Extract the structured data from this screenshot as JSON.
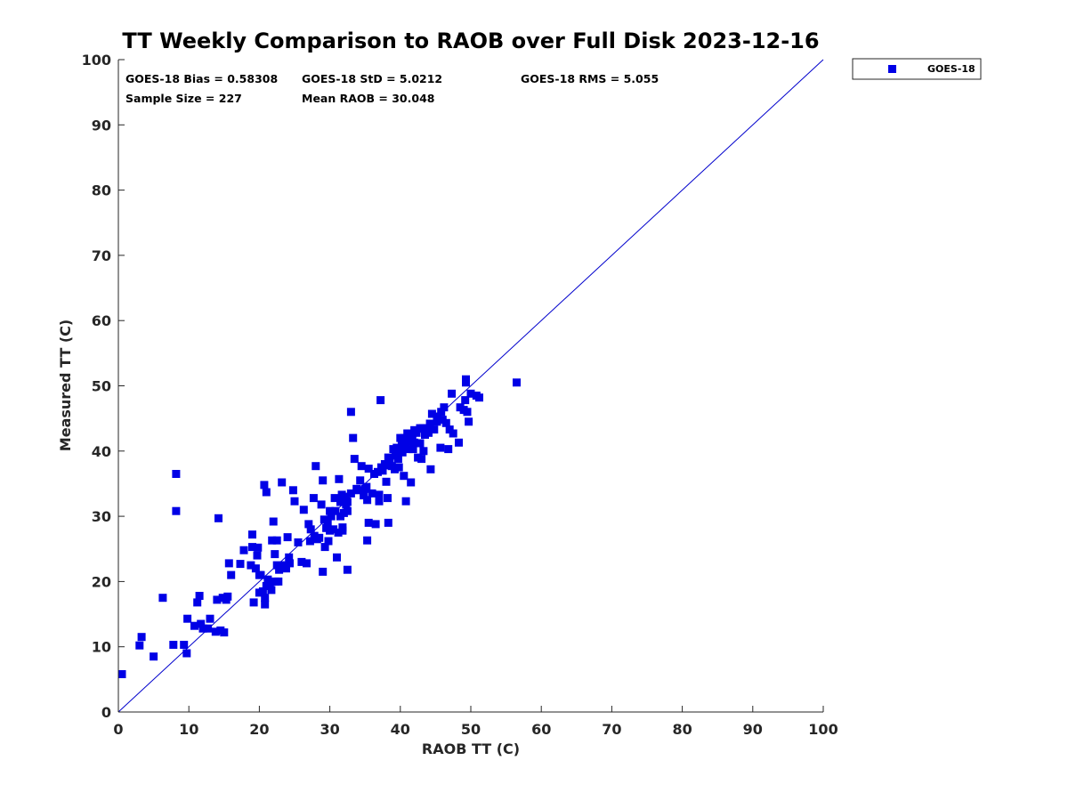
{
  "chart_data": {
    "type": "scatter",
    "title": "TT Weekly Comparison to RAOB over Full Disk 2023-12-16",
    "xlabel": "RAOB TT (C)",
    "ylabel": "Measured TT (C)",
    "xlim": [
      0,
      100
    ],
    "ylim": [
      0,
      100
    ],
    "xticks": [
      "0",
      "10",
      "20",
      "30",
      "40",
      "50",
      "60",
      "70",
      "80",
      "90",
      "100"
    ],
    "yticks": [
      "0",
      "10",
      "20",
      "30",
      "40",
      "50",
      "60",
      "70",
      "80",
      "90",
      "100"
    ],
    "grid": false,
    "legend_position": "outside-top-right",
    "reference_line": {
      "name": "1:1 line",
      "x": [
        0,
        100
      ],
      "y": [
        0,
        100
      ],
      "color": "#0000cc"
    },
    "stats": {
      "bias": "GOES-18 Bias = 0.58308",
      "std": "GOES-18 StD = 5.0212",
      "rms": "GOES-18 RMS = 5.055",
      "sample_size": "Sample Size = 227",
      "mean_raob": "Mean RAOB = 30.048"
    },
    "series": [
      {
        "name": "GOES-18",
        "color": "#0000e6",
        "marker": "square",
        "points": [
          [
            0.5,
            5.8
          ],
          [
            3,
            10.2
          ],
          [
            3.3,
            11.5
          ],
          [
            5,
            8.5
          ],
          [
            6.3,
            17.5
          ],
          [
            7.8,
            10.3
          ],
          [
            8.2,
            36.5
          ],
          [
            8.2,
            30.8
          ],
          [
            9.3,
            10.3
          ],
          [
            9.7,
            9
          ],
          [
            9.8,
            14.3
          ],
          [
            10.8,
            13.2
          ],
          [
            11.2,
            16.8
          ],
          [
            11.5,
            17.8
          ],
          [
            11.7,
            13.5
          ],
          [
            12,
            12.8
          ],
          [
            12.7,
            12.8
          ],
          [
            13,
            14.3
          ],
          [
            13.8,
            12.3
          ],
          [
            14,
            17.2
          ],
          [
            14.2,
            29.7
          ],
          [
            14.5,
            12.5
          ],
          [
            14.8,
            17.5
          ],
          [
            15,
            12.2
          ],
          [
            15.3,
            17.2
          ],
          [
            15.5,
            17.7
          ],
          [
            15.7,
            22.8
          ],
          [
            16,
            21
          ],
          [
            17.3,
            22.7
          ],
          [
            17.8,
            24.8
          ],
          [
            18.8,
            22.5
          ],
          [
            19,
            25.3
          ],
          [
            19,
            27.2
          ],
          [
            19.2,
            16.8
          ],
          [
            19.5,
            22
          ],
          [
            19.7,
            24
          ],
          [
            19.8,
            25.2
          ],
          [
            20,
            18.3
          ],
          [
            20,
            21
          ],
          [
            20.2,
            21
          ],
          [
            20.5,
            18.5
          ],
          [
            20.7,
            34.8
          ],
          [
            20.8,
            16.5
          ],
          [
            20.8,
            17.5
          ],
          [
            21,
            33.7
          ],
          [
            21,
            19.3
          ],
          [
            21.2,
            20.3
          ],
          [
            21.5,
            19.8
          ],
          [
            21.7,
            18.7
          ],
          [
            21.8,
            26.3
          ],
          [
            22,
            29.2
          ],
          [
            22.2,
            24.2
          ],
          [
            22.3,
            20
          ],
          [
            22.5,
            26.3
          ],
          [
            22.5,
            22.5
          ],
          [
            22.7,
            20
          ],
          [
            22.8,
            21.8
          ],
          [
            23,
            22.3
          ],
          [
            23.2,
            35.2
          ],
          [
            23.5,
            22.5
          ],
          [
            23.8,
            22
          ],
          [
            24,
            26.8
          ],
          [
            24.2,
            23.7
          ],
          [
            24.3,
            22.8
          ],
          [
            24.8,
            34
          ],
          [
            25,
            32.3
          ],
          [
            25.5,
            26
          ],
          [
            26,
            23
          ],
          [
            26.3,
            31
          ],
          [
            26.7,
            22.8
          ],
          [
            27,
            28.8
          ],
          [
            27.2,
            26.2
          ],
          [
            27.3,
            28
          ],
          [
            27.7,
            32.8
          ],
          [
            27.8,
            27
          ],
          [
            28,
            37.7
          ],
          [
            28.2,
            26.5
          ],
          [
            28.5,
            26.7
          ],
          [
            28.8,
            31.8
          ],
          [
            29,
            35.5
          ],
          [
            29,
            21.5
          ],
          [
            29.2,
            29.5
          ],
          [
            29.3,
            25.3
          ],
          [
            29.5,
            28.2
          ],
          [
            29.7,
            29
          ],
          [
            29.8,
            26.2
          ],
          [
            30,
            30.8
          ],
          [
            30,
            27.8
          ],
          [
            30.2,
            30
          ],
          [
            30.5,
            28
          ],
          [
            30.7,
            32.8
          ],
          [
            30.8,
            30.8
          ],
          [
            31,
            23.7
          ],
          [
            31.2,
            27.5
          ],
          [
            31.3,
            35.7
          ],
          [
            31.5,
            32.2
          ],
          [
            31.5,
            30
          ],
          [
            31.7,
            33.3
          ],
          [
            31.8,
            27.8
          ],
          [
            31.8,
            28.3
          ],
          [
            32,
            30.5
          ],
          [
            32.2,
            33
          ],
          [
            32.3,
            31.8
          ],
          [
            32.5,
            30.8
          ],
          [
            32.5,
            32.2
          ],
          [
            32.5,
            21.8
          ],
          [
            33,
            33.5
          ],
          [
            33,
            46
          ],
          [
            33.3,
            42
          ],
          [
            33.5,
            38.8
          ],
          [
            33.8,
            34.2
          ],
          [
            34,
            34
          ],
          [
            34.3,
            35.5
          ],
          [
            34.5,
            37.7
          ],
          [
            34.8,
            33.2
          ],
          [
            35,
            34.2
          ],
          [
            35.2,
            34.5
          ],
          [
            35.3,
            32.5
          ],
          [
            35.3,
            26.3
          ],
          [
            35.5,
            29
          ],
          [
            35.5,
            37.3
          ],
          [
            36,
            33.5
          ],
          [
            36.3,
            36.5
          ],
          [
            36.5,
            28.8
          ],
          [
            36.8,
            36.8
          ],
          [
            37,
            33.3
          ],
          [
            37,
            32.3
          ],
          [
            37.2,
            47.8
          ],
          [
            37.3,
            37.5
          ],
          [
            37.5,
            37
          ],
          [
            37.8,
            38
          ],
          [
            38,
            37.8
          ],
          [
            38,
            35.3
          ],
          [
            38.2,
            32.8
          ],
          [
            38.3,
            39
          ],
          [
            38.3,
            29
          ],
          [
            38.5,
            38.3
          ],
          [
            38.8,
            37.7
          ],
          [
            39,
            40.3
          ],
          [
            39.2,
            37.2
          ],
          [
            39.3,
            39.3
          ],
          [
            39.5,
            40.5
          ],
          [
            39.7,
            38.8
          ],
          [
            39.8,
            37.5
          ],
          [
            40,
            42
          ],
          [
            40,
            40
          ],
          [
            40.2,
            41.2
          ],
          [
            40.3,
            39.8
          ],
          [
            40.5,
            42
          ],
          [
            40.5,
            36.2
          ],
          [
            40.8,
            40.5
          ],
          [
            40.8,
            32.3
          ],
          [
            41,
            42.7
          ],
          [
            41,
            41.5
          ],
          [
            41.2,
            40.3
          ],
          [
            41.3,
            42.3
          ],
          [
            41.5,
            35.2
          ],
          [
            41.7,
            41.7
          ],
          [
            41.8,
            40.3
          ],
          [
            42,
            43.2
          ],
          [
            42,
            41.3
          ],
          [
            42.3,
            42.8
          ],
          [
            42.5,
            39
          ],
          [
            42.8,
            43.5
          ],
          [
            42.8,
            41.2
          ],
          [
            43,
            38.8
          ],
          [
            43.2,
            43.5
          ],
          [
            43.3,
            40
          ],
          [
            43.5,
            42.5
          ],
          [
            43.8,
            43.5
          ],
          [
            44,
            42.8
          ],
          [
            44.2,
            44.2
          ],
          [
            44.3,
            37.2
          ],
          [
            44.5,
            45.7
          ],
          [
            44.8,
            43.3
          ],
          [
            45.2,
            44.5
          ],
          [
            45.3,
            45.3
          ],
          [
            45.7,
            40.5
          ],
          [
            45.8,
            46
          ],
          [
            46,
            44.8
          ],
          [
            46.2,
            46.7
          ],
          [
            46.5,
            44.3
          ],
          [
            46.8,
            40.3
          ],
          [
            47,
            43.3
          ],
          [
            47.3,
            48.8
          ],
          [
            47.5,
            42.7
          ],
          [
            48.3,
            41.3
          ],
          [
            48.5,
            46.7
          ],
          [
            49,
            46.3
          ],
          [
            49.2,
            47.8
          ],
          [
            49.3,
            50.5
          ],
          [
            49.3,
            51
          ],
          [
            49.5,
            46
          ],
          [
            49.7,
            44.5
          ],
          [
            50,
            48.8
          ],
          [
            50.8,
            48.5
          ],
          [
            51.2,
            48.2
          ],
          [
            56.5,
            50.5
          ]
        ]
      }
    ]
  }
}
